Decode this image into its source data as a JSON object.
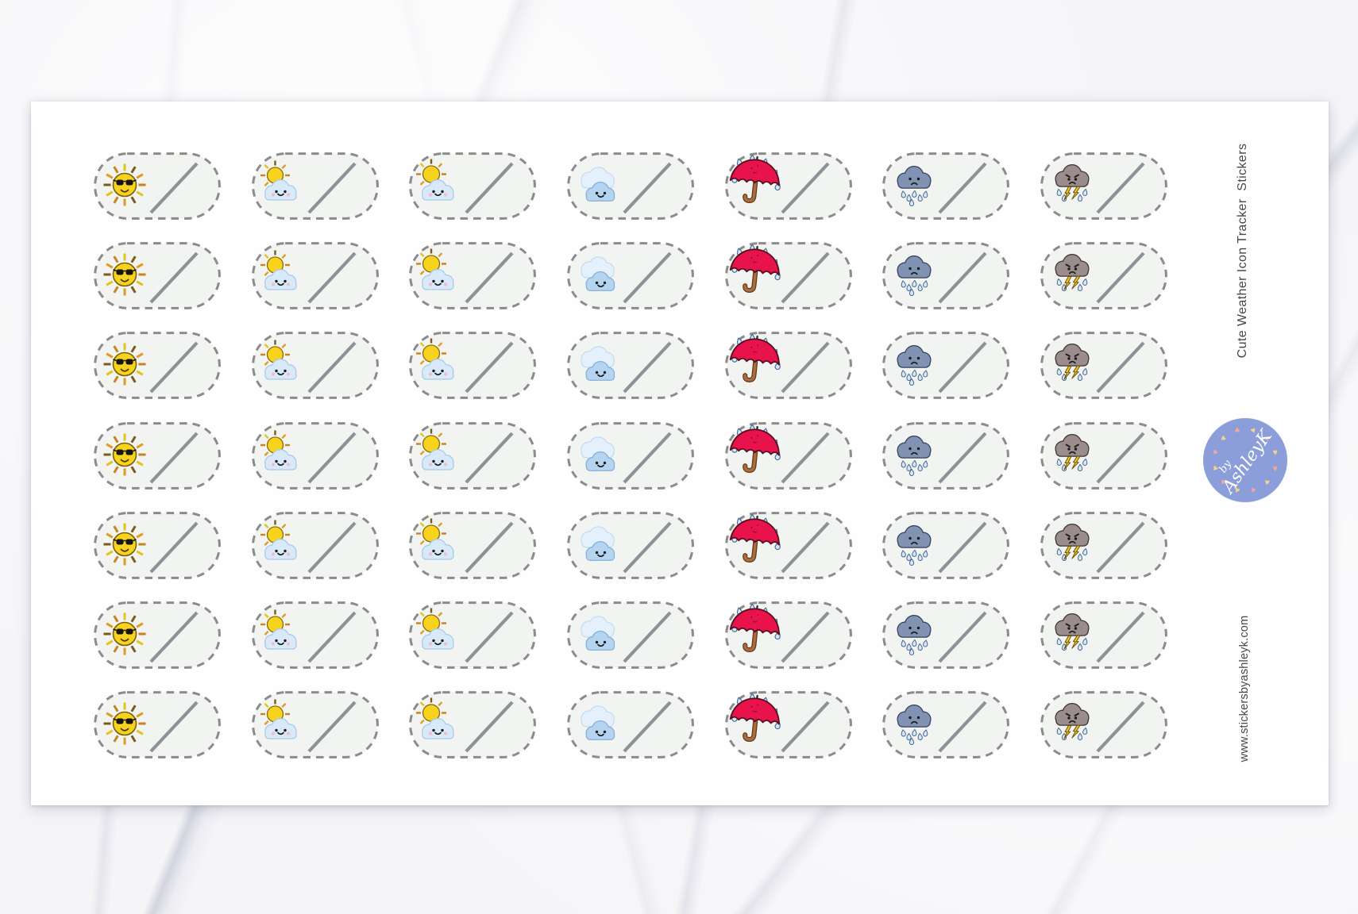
{
  "side_title": "Cute Weather Icon Tracker  Stickers",
  "website": "www.stickersbyashleyk.com",
  "badge": {
    "prefix": "by",
    "name": "AshleyK",
    "heart_colors": [
      "#f2d388",
      "#efa3b2",
      "#f2d388",
      "#f2a896"
    ]
  },
  "sheet": {
    "rows": 7,
    "columns": [
      {
        "id": "sunny",
        "icon": "sun-with-sunglasses"
      },
      {
        "id": "mostly-sunny",
        "icon": "sun-behind-small-cloud"
      },
      {
        "id": "partly-cloudy",
        "icon": "sun-behind-cloud"
      },
      {
        "id": "cloudy",
        "icon": "clouds"
      },
      {
        "id": "rainy",
        "icon": "umbrella-with-rain"
      },
      {
        "id": "rain",
        "icon": "sad-rain-cloud"
      },
      {
        "id": "storm",
        "icon": "angry-storm-cloud"
      }
    ]
  },
  "colors": {
    "sheet": "#fefefe",
    "text": "#474747",
    "sticker_fill": "#f1f4f0",
    "dash": "#8b8b8b",
    "slash": "#8c9298",
    "sun_yellow": "#f8d31d",
    "ray_brown": "#7c5a1e",
    "ray_orange": "#c8831f",
    "ray_gold": "#e4c41c",
    "cloud_light": "#d8eaf9",
    "cloud_light_outline": "#a9c9e7",
    "cloud_front": "#b5d4f0",
    "cloud_front_outline": "#86afd9",
    "cloud_back": "#e4f0fb",
    "cloud_back_outline": "#c4ddf2",
    "umbrella_red": "#e8134b",
    "umbrella_outline": "#581022",
    "handle_brown": "#ab6c3e",
    "handle_outline": "#5f3a1c",
    "rain_cloud": "#8093b2",
    "rain_cloud_outline": "#32405c",
    "storm_cloud": "#9b8d8e",
    "storm_cloud_outline": "#3c3234",
    "bolt_yellow": "#f2c41e",
    "drop_fill": "#d6e8f9",
    "drop_outline": "#47688f",
    "cheek_pink": "#f5b9ca",
    "face_dark": "#1c1c1c",
    "badge_blue": "#8c9ed9",
    "badge_text": "#ffffff"
  }
}
